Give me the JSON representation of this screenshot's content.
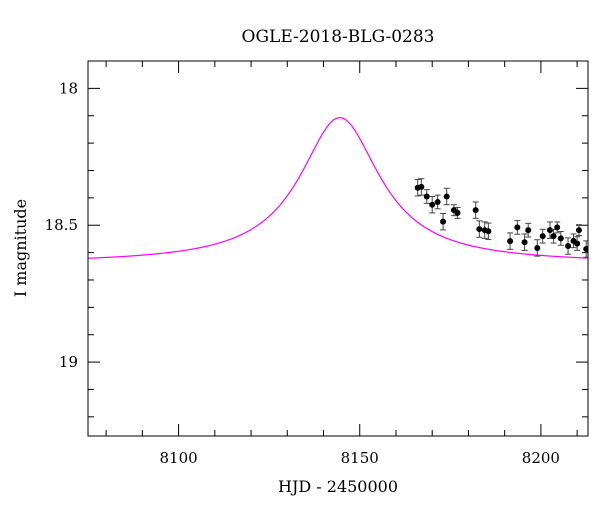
{
  "chart_data": {
    "type": "scatter",
    "title": "OGLE-2018-BLG-0283",
    "xlabel": "HJD - 2450000",
    "ylabel": "I magnitude",
    "xlim": [
      8075,
      8213
    ],
    "ylim": [
      19.27,
      17.9
    ],
    "y_inverted": true,
    "x_ticks": [
      8100,
      8150,
      8200
    ],
    "x_tick_labels": [
      "8100",
      "8150",
      "8200"
    ],
    "y_ticks": [
      18,
      18.5,
      19
    ],
    "y_tick_labels": [
      "18",
      "18.5",
      "19"
    ],
    "x_minor_step": 10,
    "y_minor_step": 0.1,
    "grid": false,
    "series": [
      {
        "kind": "model",
        "color": "#ff00ff",
        "model": {
          "baseline": 18.64,
          "peak": 18.107,
          "t0": 8144.5,
          "tE": 13.5,
          "profile": "lorentzian"
        }
      },
      {
        "kind": "points",
        "color": "#000000",
        "points": [
          {
            "x": 8166.0,
            "y": 18.363,
            "err": 0.03
          },
          {
            "x": 8167.0,
            "y": 18.36,
            "err": 0.03
          },
          {
            "x": 8168.5,
            "y": 18.395,
            "err": 0.025
          },
          {
            "x": 8170.0,
            "y": 18.425,
            "err": 0.03
          },
          {
            "x": 8171.5,
            "y": 18.415,
            "err": 0.025
          },
          {
            "x": 8173.0,
            "y": 18.487,
            "err": 0.03
          },
          {
            "x": 8174.0,
            "y": 18.395,
            "err": 0.03
          },
          {
            "x": 8176.0,
            "y": 18.445,
            "err": 0.02
          },
          {
            "x": 8177.0,
            "y": 18.455,
            "err": 0.02
          },
          {
            "x": 8182.0,
            "y": 18.445,
            "err": 0.03
          },
          {
            "x": 8183.0,
            "y": 18.514,
            "err": 0.03
          },
          {
            "x": 8184.5,
            "y": 18.518,
            "err": 0.03
          },
          {
            "x": 8185.5,
            "y": 18.522,
            "err": 0.03
          },
          {
            "x": 8191.5,
            "y": 18.558,
            "err": 0.03
          },
          {
            "x": 8193.5,
            "y": 18.508,
            "err": 0.025
          },
          {
            "x": 8195.5,
            "y": 18.562,
            "err": 0.03
          },
          {
            "x": 8196.5,
            "y": 18.518,
            "err": 0.025
          },
          {
            "x": 8199.0,
            "y": 18.583,
            "err": 0.03
          },
          {
            "x": 8200.5,
            "y": 18.54,
            "err": 0.025
          },
          {
            "x": 8202.5,
            "y": 18.518,
            "err": 0.03
          },
          {
            "x": 8203.5,
            "y": 18.54,
            "err": 0.025
          },
          {
            "x": 8204.5,
            "y": 18.508,
            "err": 0.02
          },
          {
            "x": 8205.5,
            "y": 18.548,
            "err": 0.025
          },
          {
            "x": 8207.5,
            "y": 18.576,
            "err": 0.03
          },
          {
            "x": 8209.0,
            "y": 18.557,
            "err": 0.025
          },
          {
            "x": 8210.0,
            "y": 18.567,
            "err": 0.025
          },
          {
            "x": 8210.5,
            "y": 18.518,
            "err": 0.02
          },
          {
            "x": 8212.5,
            "y": 18.587,
            "err": 0.03
          }
        ]
      }
    ]
  }
}
